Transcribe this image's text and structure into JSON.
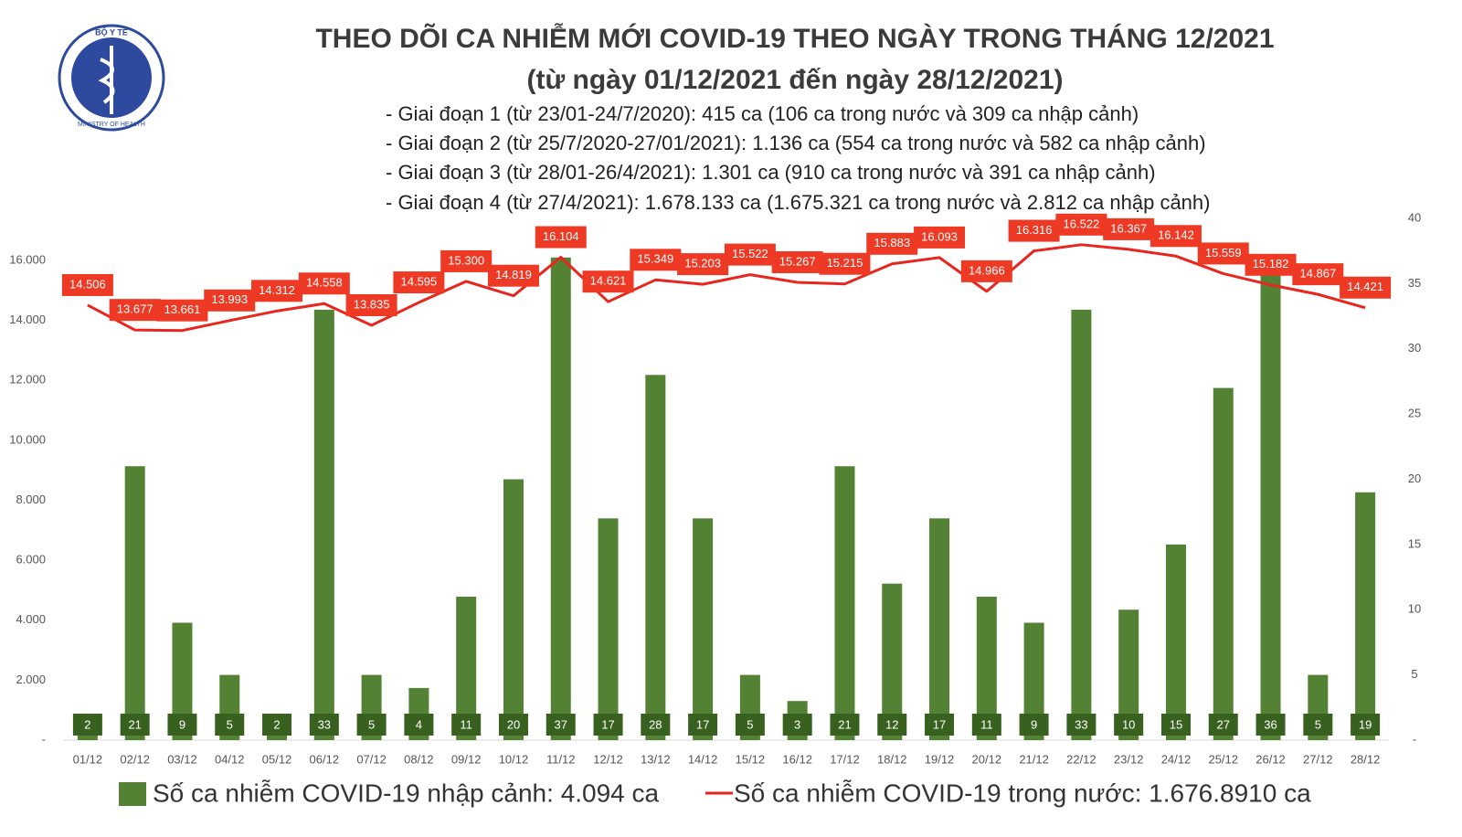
{
  "logo": {
    "top": "BỘ Y TẾ",
    "bottom": "MINISTRY OF HEALTH"
  },
  "chart_data": {
    "type": "bar-line",
    "title": [
      "THEO DÕI CA NHIỄM MỚI COVID-19 THEO NGÀY TRONG THÁNG 12/2021",
      "(từ ngày 01/12/2021 đến ngày 28/12/2021)"
    ],
    "annotations": [
      "- Giai đoạn 1 (từ 23/01-24/7/2020): 415 ca (106 ca trong nước và 309 ca nhập cảnh)",
      "- Giai đoạn 2 (từ 25/7/2020-27/01/2021): 1.136 ca (554 ca trong nước và 582 ca nhập cảnh)",
      "- Giai đoạn 3 (từ 28/01-26/4/2021): 1.301 ca (910 ca trong nước và 391 ca nhập cảnh)",
      "- Giai đoạn 4 (từ 27/4/2021): 1.678.133 ca (1.675.321 ca trong nước và 2.812 ca nhập cảnh)"
    ],
    "categories": [
      "01/12",
      "02/12",
      "03/12",
      "04/12",
      "05/12",
      "06/12",
      "07/12",
      "08/12",
      "09/12",
      "10/12",
      "11/12",
      "12/12",
      "13/12",
      "14/12",
      "15/12",
      "16/12",
      "17/12",
      "18/12",
      "19/12",
      "20/12",
      "21/12",
      "22/12",
      "23/12",
      "24/12",
      "25/12",
      "26/12",
      "27/12",
      "28/12"
    ],
    "series": [
      {
        "name": "Số ca nhiễm COVID-19 nhập cảnh: 4.094 ca",
        "color": "#548235",
        "axis": "y2",
        "type": "bar",
        "values": [
          2,
          21,
          9,
          5,
          2,
          33,
          5,
          4,
          11,
          20,
          37,
          17,
          28,
          17,
          5,
          3,
          21,
          12,
          17,
          11,
          9,
          33,
          10,
          15,
          27,
          36,
          5,
          19
        ]
      },
      {
        "name": "Số ca nhiễm COVID-19 trong nước: 1.676.8910 ca",
        "color": "#e8261e",
        "axis": "y",
        "type": "line",
        "values": [
          14506,
          13677,
          13661,
          13993,
          14312,
          14558,
          13835,
          14595,
          15300,
          14819,
          16104,
          14621,
          15349,
          15203,
          15522,
          15267,
          15215,
          15883,
          16093,
          14966,
          16316,
          16522,
          16367,
          16142,
          15559,
          15182,
          14867,
          14421
        ],
        "value_labels": [
          "14.506",
          "13.677",
          "13.661",
          "13.993",
          "14.312",
          "14.558",
          "13.835",
          "14.595",
          "15.300",
          "14.819",
          "16.104",
          "14.621",
          "15.349",
          "15.203",
          "15.522",
          "15.267",
          "15.215",
          "15.883",
          "16.093",
          "14.966",
          "16.316",
          "16.522",
          "16.367",
          "16.142",
          "15.559",
          "15.182",
          "14.867",
          "14.421"
        ]
      }
    ],
    "ylim": [
      0,
      17400
    ],
    "yticks": [
      {
        "value": 0,
        "label": "-"
      },
      {
        "value": 2000,
        "label": "2.000"
      },
      {
        "value": 4000,
        "label": "4.000"
      },
      {
        "value": 6000,
        "label": "6.000"
      },
      {
        "value": 8000,
        "label": "8.000"
      },
      {
        "value": 10000,
        "label": "10.000"
      },
      {
        "value": 12000,
        "label": "12.000"
      },
      {
        "value": 14000,
        "label": "14.000"
      },
      {
        "value": 16000,
        "label": "16.000"
      }
    ],
    "y2lim": [
      0,
      40
    ],
    "y2ticks": [
      {
        "value": 0,
        "label": "-"
      },
      5,
      10,
      15,
      20,
      25,
      30,
      35,
      40
    ],
    "grid": false,
    "legend": "bottom"
  }
}
